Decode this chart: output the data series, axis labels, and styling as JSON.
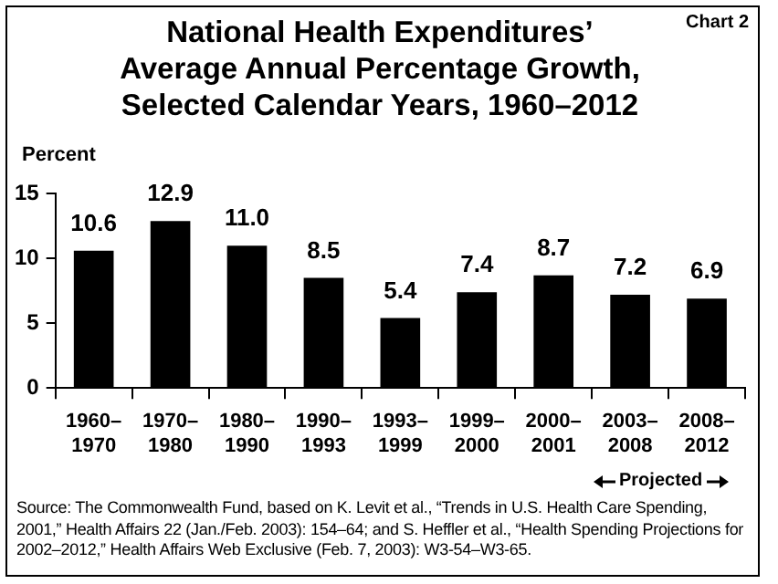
{
  "chart_data": {
    "type": "bar",
    "title": "National Health Expenditures’ Average Annual Percentage Growth, Selected Calendar Years, 1960–2012",
    "ylabel": "Percent",
    "categories": [
      "1960–1970",
      "1970–1980",
      "1980–1990",
      "1990–1993",
      "1993–1999",
      "1999–2000",
      "2000–2001",
      "2003–2008",
      "2008–2012"
    ],
    "values": [
      10.6,
      12.9,
      11.0,
      8.5,
      5.4,
      7.4,
      8.7,
      7.2,
      6.9
    ],
    "value_labels": [
      "10.6",
      "12.9",
      "11.0",
      "8.5",
      "5.4",
      "7.4",
      "8.7",
      "7.2",
      "6.9"
    ],
    "color": "#000000",
    "ylim": [
      0,
      15
    ],
    "yticks": [
      0,
      5,
      10,
      15
    ],
    "grid": false,
    "legend": false,
    "annotations": [
      "Chart 2",
      "Projected",
      "Source: The Commonwealth Fund, based on K. Levit et al., “Trends in U.S. Health Care Spending, 2001,” Health Affairs 22 (Jan./Feb. 2003): 154–64; and S. Heffler et al., “Health Spending Projections for 2002–2012,” Health Affairs Web Exclusive (Feb. 7, 2003): W3-54–W3-65."
    ]
  }
}
